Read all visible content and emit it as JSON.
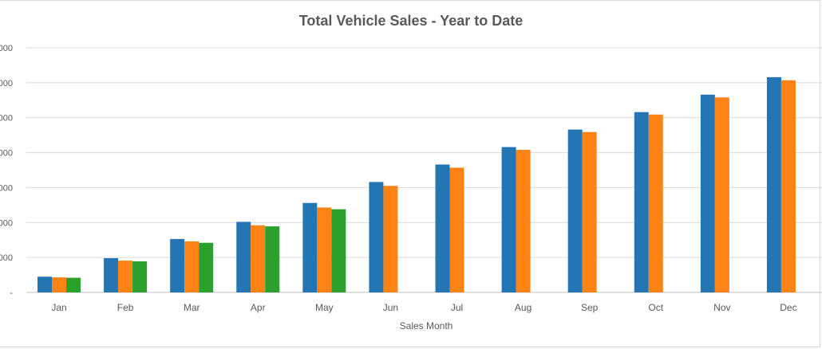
{
  "chart_data": {
    "type": "bar",
    "title": "Total Vehicle Sales - Year to Date",
    "xlabel": "Sales Month",
    "ylabel": "",
    "categories": [
      "Jan",
      "Feb",
      "Mar",
      "Apr",
      "May",
      "Jun",
      "Jul",
      "Aug",
      "Sep",
      "Oct",
      "Nov",
      "Dec"
    ],
    "y_tick_labels": [
      "-",
      "000",
      "000",
      "000",
      "000",
      "000",
      "000",
      "000"
    ],
    "ylim": [
      0,
      7
    ],
    "grid": true,
    "legend": "none",
    "series": [
      {
        "color": "#2475b4",
        "values": [
          0.45,
          0.98,
          1.53,
          2.02,
          2.56,
          3.16,
          3.66,
          4.16,
          4.66,
          5.16,
          5.66,
          6.16
        ]
      },
      {
        "color": "#ff8215",
        "values": [
          0.43,
          0.91,
          1.46,
          1.92,
          2.43,
          3.05,
          3.57,
          4.08,
          4.59,
          5.09,
          5.58,
          6.07
        ]
      },
      {
        "color": "#2ca02c",
        "values": [
          0.42,
          0.89,
          1.42,
          1.89,
          2.38,
          null,
          null,
          null,
          null,
          null,
          null,
          null
        ]
      }
    ]
  }
}
